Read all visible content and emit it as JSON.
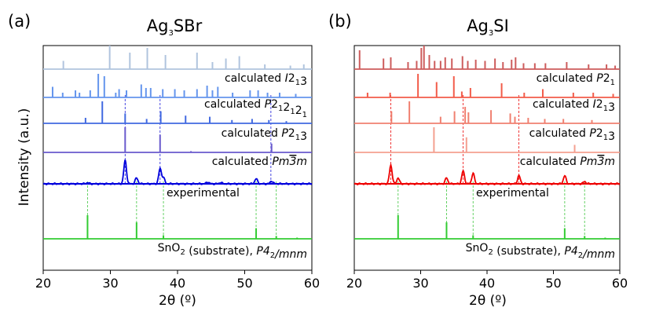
{
  "chart_data": [
    {
      "type": "line",
      "panel_label": "(a)",
      "title_base": "Ag",
      "title_sub": "3",
      "title_rest": "SBr",
      "xlabel": "2θ (º)",
      "ylabel": "Intensity (a.u.)",
      "xlim": [
        20,
        60
      ],
      "xticks": [
        "20",
        "30",
        "40",
        "50",
        "60"
      ],
      "ref_lines": [
        {
          "x": 32.2,
          "color": "#3333dd",
          "from_trace": 4,
          "to_trace": 1
        },
        {
          "x": 37.4,
          "color": "#3333dd",
          "from_trace": 4,
          "to_trace": 1
        },
        {
          "x": 53.9,
          "color": "#3333dd",
          "from_trace": 4,
          "to_trace": 1
        },
        {
          "x": 26.6,
          "color": "#55cc55",
          "from_trace": 5,
          "to_trace": 4
        },
        {
          "x": 33.9,
          "color": "#55cc55",
          "from_trace": 5,
          "to_trace": 4
        },
        {
          "x": 37.9,
          "color": "#55cc55",
          "from_trace": 5,
          "to_trace": 4
        },
        {
          "x": 51.7,
          "color": "#55cc55",
          "from_trace": 5,
          "to_trace": 4
        },
        {
          "x": 54.7,
          "color": "#55cc55",
          "from_trace": 5,
          "to_trace": 4
        }
      ],
      "series": [
        {
          "name": "",
          "kind": "sticks",
          "color": "#b0c4de",
          "peaks": [
            [
              23.0,
              0.35
            ],
            [
              29.9,
              1.0
            ],
            [
              32.9,
              0.7
            ],
            [
              35.5,
              0.9
            ],
            [
              38.2,
              0.6
            ],
            [
              42.9,
              0.7
            ],
            [
              45.2,
              0.3
            ],
            [
              47.2,
              0.45
            ],
            [
              49.2,
              0.55
            ],
            [
              53.0,
              0.2
            ],
            [
              56.8,
              0.15
            ],
            [
              58.8,
              0.2
            ]
          ]
        },
        {
          "name": "calculated I2₁3",
          "kind": "sticks",
          "color": "#6495ed",
          "label_parts": [
            {
              "t": "calculated "
            },
            {
              "t": "I",
              "i": true
            },
            {
              "t": "2"
            },
            {
              "t": "1",
              "sub": true
            },
            {
              "t": "3"
            }
          ],
          "peaks": [
            [
              21.4,
              0.45
            ],
            [
              22.9,
              0.2
            ],
            [
              24.8,
              0.3
            ],
            [
              25.4,
              0.2
            ],
            [
              27.0,
              0.3
            ],
            [
              28.2,
              1.0
            ],
            [
              29.1,
              0.9
            ],
            [
              30.8,
              0.2
            ],
            [
              31.3,
              0.35
            ],
            [
              32.4,
              0.3
            ],
            [
              34.6,
              0.55
            ],
            [
              35.3,
              0.4
            ],
            [
              36.0,
              0.4
            ],
            [
              37.8,
              0.35
            ],
            [
              39.6,
              0.35
            ],
            [
              41.0,
              0.3
            ],
            [
              42.9,
              0.35
            ],
            [
              44.4,
              0.5
            ],
            [
              45.2,
              0.3
            ],
            [
              46.0,
              0.45
            ],
            [
              48.2,
              0.2
            ],
            [
              50.8,
              0.3
            ],
            [
              52.0,
              0.3
            ],
            [
              53.4,
              0.2
            ],
            [
              55.2,
              0.2
            ],
            [
              57.6,
              0.15
            ]
          ]
        },
        {
          "name": "calculated P2₁2₁2₁",
          "kind": "sticks",
          "color": "#4169e1",
          "label_parts": [
            {
              "t": "calculated "
            },
            {
              "t": "P",
              "i": true
            },
            {
              "t": "2"
            },
            {
              "t": "1",
              "sub": true
            },
            {
              "t": "2"
            },
            {
              "t": "1",
              "sub": true
            },
            {
              "t": "2"
            },
            {
              "t": "1",
              "sub": true
            }
          ],
          "peaks": [
            [
              26.3,
              0.25
            ],
            [
              28.8,
              1.0
            ],
            [
              32.2,
              0.45
            ],
            [
              35.4,
              0.2
            ],
            [
              37.5,
              0.55
            ],
            [
              41.2,
              0.35
            ],
            [
              44.8,
              0.3
            ],
            [
              48.1,
              0.15
            ],
            [
              51.1,
              0.2
            ],
            [
              53.6,
              0.15
            ],
            [
              56.2,
              0.1
            ]
          ]
        },
        {
          "name": "calculated P2₁3",
          "kind": "sticks",
          "color": "#6a5acd",
          "label_parts": [
            {
              "t": "calculated "
            },
            {
              "t": "P",
              "i": true
            },
            {
              "t": "2"
            },
            {
              "t": "1",
              "sub": true
            },
            {
              "t": "3"
            }
          ],
          "peaks": [
            [
              32.2,
              1.0
            ],
            [
              37.4,
              0.7
            ],
            [
              42.0,
              0.05
            ],
            [
              54.0,
              0.35
            ]
          ]
        },
        {
          "name": "calculated Pm3̄m",
          "kind": "profile",
          "color": "#0000dd",
          "label_parts": [
            {
              "t": "calculated "
            },
            {
              "t": "Pm",
              "i": true
            },
            {
              "t": "3",
              "i": true,
              "bar": true
            },
            {
              "t": "m",
              "i": true
            }
          ],
          "peaks": [
            [
              26.6,
              0.05
            ],
            [
              32.2,
              1.0
            ],
            [
              33.9,
              0.25
            ],
            [
              37.4,
              0.65
            ],
            [
              37.9,
              0.25
            ],
            [
              44.5,
              0.08
            ],
            [
              46.4,
              0.06
            ],
            [
              51.7,
              0.22
            ],
            [
              54.0,
              0.12
            ]
          ]
        },
        {
          "name": "experimental",
          "kind": "sticks",
          "color": "#33cc33",
          "label_parts": [
            {
              "t": "experimental"
            }
          ],
          "peaks": [
            [
              26.6,
              1.0
            ],
            [
              33.9,
              0.7
            ],
            [
              37.9,
              0.15
            ],
            [
              51.7,
              0.45
            ],
            [
              54.7,
              0.12
            ],
            [
              57.8,
              0.05
            ]
          ]
        },
        {
          "name": "SnO₂ (substrate), P4₂/mnm",
          "kind": "none",
          "color": "#33cc33",
          "label_parts": [
            {
              "t": "SnO"
            },
            {
              "t": "2",
              "sub": true
            },
            {
              "t": " (substrate), "
            },
            {
              "t": "P",
              "i": true
            },
            {
              "t": "4",
              "i": true
            },
            {
              "t": "2",
              "sub": true
            },
            {
              "t": "/mnm",
              "i": true
            }
          ],
          "peaks": []
        }
      ]
    },
    {
      "type": "line",
      "panel_label": "(b)",
      "title_base": "Ag",
      "title_sub": "3",
      "title_rest": "SI",
      "xlabel": "2θ (º)",
      "ylabel": "",
      "xlim": [
        20,
        60
      ],
      "xticks": [
        "20",
        "30",
        "40",
        "50",
        "60"
      ],
      "ref_lines": [
        {
          "x": 25.5,
          "color": "#ee2222",
          "from_trace": 4,
          "to_trace": 1
        },
        {
          "x": 36.4,
          "color": "#ee2222",
          "from_trace": 4,
          "to_trace": 1
        },
        {
          "x": 44.8,
          "color": "#ee2222",
          "from_trace": 4,
          "to_trace": 1
        },
        {
          "x": 26.6,
          "color": "#55cc55",
          "from_trace": 5,
          "to_trace": 4
        },
        {
          "x": 33.9,
          "color": "#55cc55",
          "from_trace": 5,
          "to_trace": 4
        },
        {
          "x": 37.9,
          "color": "#55cc55",
          "from_trace": 5,
          "to_trace": 4
        },
        {
          "x": 51.7,
          "color": "#55cc55",
          "from_trace": 5,
          "to_trace": 4
        },
        {
          "x": 54.7,
          "color": "#55cc55",
          "from_trace": 5,
          "to_trace": 4
        }
      ],
      "series": [
        {
          "name": "",
          "kind": "sticks",
          "color": "#cd5c5c",
          "peaks": [
            [
              20.8,
              0.8
            ],
            [
              24.4,
              0.45
            ],
            [
              25.5,
              0.5
            ],
            [
              28.1,
              0.3
            ],
            [
              29.4,
              0.35
            ],
            [
              30.1,
              0.9
            ],
            [
              30.5,
              1.0
            ],
            [
              31.3,
              0.6
            ],
            [
              32.1,
              0.35
            ],
            [
              33.0,
              0.35
            ],
            [
              33.7,
              0.5
            ],
            [
              34.7,
              0.45
            ],
            [
              36.3,
              0.55
            ],
            [
              37.1,
              0.35
            ],
            [
              38.3,
              0.4
            ],
            [
              39.7,
              0.35
            ],
            [
              41.2,
              0.45
            ],
            [
              42.4,
              0.3
            ],
            [
              43.7,
              0.4
            ],
            [
              44.3,
              0.5
            ],
            [
              45.5,
              0.25
            ],
            [
              47.2,
              0.25
            ],
            [
              48.8,
              0.25
            ],
            [
              52.0,
              0.3
            ],
            [
              55.3,
              0.2
            ],
            [
              58.0,
              0.2
            ],
            [
              59.3,
              0.15
            ]
          ]
        },
        {
          "name": "calculated P2₁",
          "kind": "sticks",
          "color": "#f25c4a",
          "label_parts": [
            {
              "t": "calculated "
            },
            {
              "t": "P",
              "i": true
            },
            {
              "t": "2"
            },
            {
              "t": "1",
              "sub": true
            }
          ],
          "peaks": [
            [
              22.0,
              0.2
            ],
            [
              25.4,
              0.2
            ],
            [
              29.6,
              1.0
            ],
            [
              32.4,
              0.65
            ],
            [
              35.0,
              0.9
            ],
            [
              36.2,
              0.25
            ],
            [
              37.5,
              0.4
            ],
            [
              42.2,
              0.6
            ],
            [
              45.6,
              0.2
            ],
            [
              48.4,
              0.35
            ],
            [
              53.0,
              0.2
            ],
            [
              56.0,
              0.2
            ],
            [
              59.0,
              0.15
            ]
          ]
        },
        {
          "name": "calculated I2₁3",
          "kind": "sticks",
          "color": "#f08070",
          "label_parts": [
            {
              "t": "calculated "
            },
            {
              "t": "I",
              "i": true
            },
            {
              "t": "2"
            },
            {
              "t": "1",
              "sub": true
            },
            {
              "t": "3"
            }
          ],
          "peaks": [
            [
              25.6,
              0.55
            ],
            [
              28.3,
              1.0
            ],
            [
              33.0,
              0.3
            ],
            [
              35.1,
              0.55
            ],
            [
              36.7,
              0.75
            ],
            [
              37.2,
              0.5
            ],
            [
              40.6,
              0.6
            ],
            [
              43.5,
              0.45
            ],
            [
              44.2,
              0.3
            ],
            [
              46.2,
              0.25
            ],
            [
              48.7,
              0.2
            ],
            [
              51.5,
              0.2
            ],
            [
              55.8,
              0.15
            ]
          ]
        },
        {
          "name": "calculated P2₁3",
          "kind": "sticks",
          "color": "#f4a090",
          "label_parts": [
            {
              "t": "calculated "
            },
            {
              "t": "P",
              "i": true
            },
            {
              "t": "2"
            },
            {
              "t": "1",
              "sub": true
            },
            {
              "t": "3"
            }
          ],
          "peaks": [
            [
              32.0,
              1.0
            ],
            [
              36.9,
              0.6
            ],
            [
              53.2,
              0.3
            ]
          ]
        },
        {
          "name": "calculated Pm3̄m",
          "kind": "profile",
          "color": "#ee0000",
          "label_parts": [
            {
              "t": "calculated "
            },
            {
              "t": "Pm",
              "i": true
            },
            {
              "t": "3",
              "i": true,
              "bar": true
            },
            {
              "t": "m",
              "i": true
            }
          ],
          "peaks": [
            [
              25.5,
              0.8
            ],
            [
              26.6,
              0.25
            ],
            [
              33.9,
              0.25
            ],
            [
              36.4,
              0.55
            ],
            [
              37.9,
              0.45
            ],
            [
              44.8,
              0.35
            ],
            [
              51.7,
              0.35
            ],
            [
              54.7,
              0.1
            ]
          ]
        },
        {
          "name": "experimental",
          "kind": "sticks",
          "color": "#33cc33",
          "label_parts": [
            {
              "t": "experimental"
            }
          ],
          "peaks": [
            [
              26.6,
              1.0
            ],
            [
              33.9,
              0.7
            ],
            [
              37.9,
              0.15
            ],
            [
              51.7,
              0.45
            ],
            [
              54.7,
              0.12
            ],
            [
              57.8,
              0.05
            ]
          ]
        },
        {
          "name": "SnO₂ (substrate), P4₂/mnm",
          "kind": "none",
          "color": "#33cc33",
          "label_parts": [
            {
              "t": "SnO"
            },
            {
              "t": "2",
              "sub": true
            },
            {
              "t": " (substrate), "
            },
            {
              "t": "P",
              "i": true
            },
            {
              "t": "4",
              "i": true
            },
            {
              "t": "2",
              "sub": true
            },
            {
              "t": "/mnm",
              "i": true
            }
          ],
          "peaks": []
        }
      ]
    }
  ]
}
